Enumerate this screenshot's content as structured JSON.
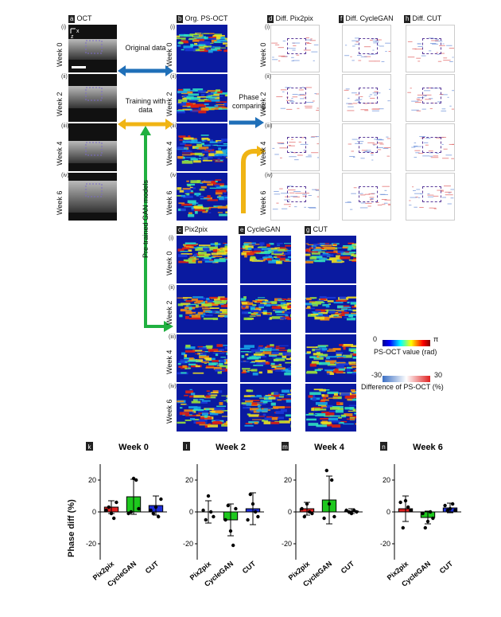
{
  "panels": {
    "a": {
      "letter": "a",
      "title": "OCT"
    },
    "b": {
      "letter": "b",
      "title": "Org. PS-OCT"
    },
    "c": {
      "letter": "c",
      "title": "Pix2pix"
    },
    "d": {
      "letter": "d",
      "title": "Diff. Pix2pix"
    },
    "e": {
      "letter": "e",
      "title": "CycleGAN"
    },
    "f": {
      "letter": "f",
      "title": "Diff. CycleGAN"
    },
    "g": {
      "letter": "g",
      "title": "CUT"
    },
    "h": {
      "letter": "h",
      "title": "Diff. CUT"
    }
  },
  "weeks": [
    "Week 0",
    "Week 2",
    "Week 4",
    "Week 6"
  ],
  "romans": [
    "(i)",
    "(ii)",
    "(iii)",
    "(iv)"
  ],
  "axes": {
    "x": "x",
    "z": "z"
  },
  "arrows": {
    "original": "Original data",
    "training": "Training with data",
    "phase": "Phase comparing",
    "pretrained": "Pre-trained GAN models"
  },
  "colorbars": {
    "ps": {
      "min": "0",
      "max": "π",
      "label": "PS-OCT value (rad)"
    },
    "diff": {
      "min": "-30",
      "max": "30",
      "label": "Difference of PS-OCT (%)"
    }
  },
  "ylabel": "Phase diff (%)",
  "chart_data": [
    {
      "type": "bar",
      "letter": "k",
      "title": "Week 0",
      "categories": [
        "Pix2pix",
        "CycleGAN",
        "CUT"
      ],
      "values": [
        3,
        9.5,
        4
      ],
      "errors": [
        4,
        11,
        6
      ],
      "points": [
        [
          1,
          3,
          -1,
          -4,
          6
        ],
        [
          -1,
          0,
          21,
          20,
          2
        ],
        [
          1,
          -1,
          3,
          -3,
          8
        ]
      ],
      "ylim": [
        -30,
        30
      ],
      "yticks": [
        -20,
        0,
        20
      ],
      "colors": [
        "#e02020",
        "#1ec81e",
        "#1e2ed8"
      ]
    },
    {
      "type": "bar",
      "letter": "l",
      "title": "Week 2",
      "categories": [
        "Pix2pix",
        "CycleGAN",
        "CUT"
      ],
      "values": [
        0,
        -5,
        2
      ],
      "errors": [
        7,
        10,
        10
      ],
      "points": [
        [
          1,
          -5,
          10,
          0,
          -3
        ],
        [
          -5,
          4,
          -12,
          -21,
          2
        ],
        [
          -5,
          11,
          5,
          0,
          -3
        ]
      ],
      "ylim": [
        -30,
        30
      ],
      "yticks": [
        -20,
        0,
        20
      ],
      "colors": [
        "#e02020",
        "#1ec81e",
        "#1e2ed8"
      ]
    },
    {
      "type": "bar",
      "letter": "m",
      "title": "Week 4",
      "categories": [
        "Pix2pix",
        "CycleGAN",
        "CUT"
      ],
      "values": [
        2,
        7.5,
        0.5
      ],
      "errors": [
        4,
        15,
        1.5
      ],
      "points": [
        [
          2,
          -3,
          5,
          0,
          -1
        ],
        [
          -4,
          26,
          5,
          20,
          -3
        ],
        [
          1,
          0,
          -1,
          1,
          0
        ]
      ],
      "ylim": [
        -30,
        30
      ],
      "yticks": [
        -20,
        0,
        20
      ],
      "colors": [
        "#e02020",
        "#1ec81e",
        "#1e2ed8"
      ]
    },
    {
      "type": "bar",
      "letter": "n",
      "title": "Week 6",
      "categories": [
        "Pix2pix",
        "CycleGAN",
        "CUT"
      ],
      "values": [
        2,
        -3.5,
        2.5
      ],
      "errors": [
        8,
        4,
        3
      ],
      "points": [
        [
          6,
          -10,
          7,
          3,
          1
        ],
        [
          -1,
          -10,
          -6,
          0,
          -4
        ],
        [
          4,
          1,
          2,
          5,
          1
        ]
      ],
      "ylim": [
        -30,
        30
      ],
      "yticks": [
        -20,
        0,
        20
      ],
      "colors": [
        "#e02020",
        "#1ec81e",
        "#1e2ed8"
      ]
    }
  ]
}
